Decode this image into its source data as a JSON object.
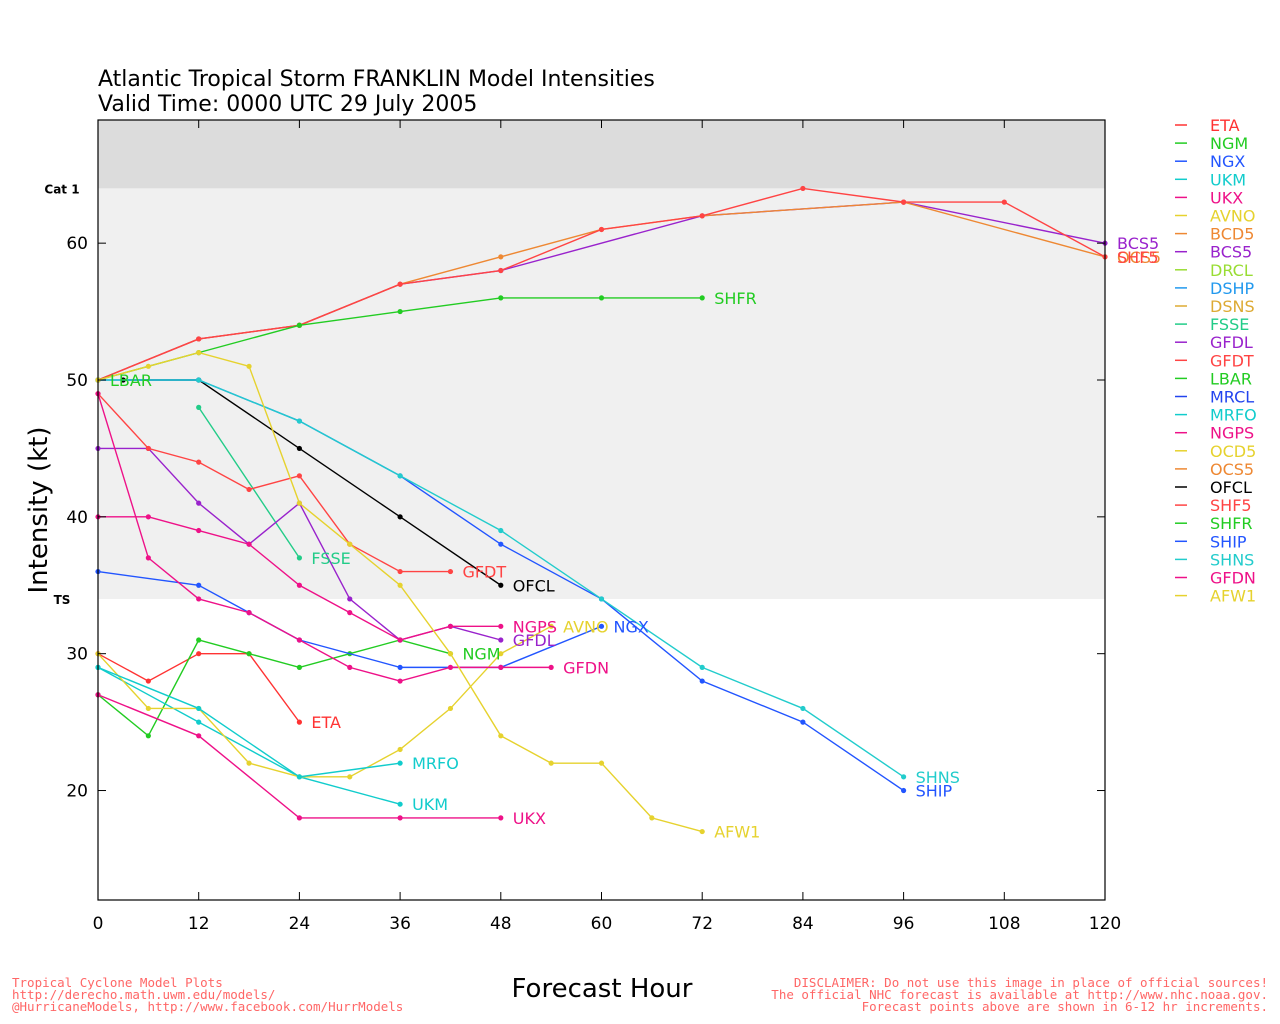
{
  "chart_data": {
    "type": "line",
    "title": "Atlantic Tropical Storm FRANKLIN Model Intensities",
    "subtitle": "Valid Time: 0000 UTC 29 July 2005",
    "xlabel": "Forecast Hour",
    "ylabel": "Intensity (kt)",
    "xlim": [
      0,
      120
    ],
    "ylim": [
      12,
      69
    ],
    "xticks": [
      0,
      12,
      24,
      36,
      48,
      60,
      72,
      84,
      96,
      108,
      120
    ],
    "yticks": [
      20,
      30,
      40,
      50,
      60
    ],
    "bands": [
      {
        "label": "Cat 1",
        "from": 64,
        "to": 69,
        "color": "#dcdcdc"
      },
      {
        "label": "TS",
        "from": 34,
        "to": 64,
        "color": "#f0f0f0"
      }
    ],
    "series": [
      {
        "name": "ETA",
        "color": "#ff3333",
        "points": [
          [
            0,
            30
          ],
          [
            6,
            28
          ],
          [
            12,
            30
          ],
          [
            18,
            30
          ],
          [
            24,
            25
          ]
        ],
        "label": "ETA"
      },
      {
        "name": "NGM",
        "color": "#22cc22",
        "points": [
          [
            0,
            27
          ],
          [
            6,
            24
          ],
          [
            12,
            31
          ],
          [
            18,
            30
          ],
          [
            24,
            29
          ],
          [
            30,
            30
          ],
          [
            36,
            31
          ],
          [
            42,
            30
          ]
        ],
        "label": "NGM"
      },
      {
        "name": "NGX",
        "color": "#2255ff",
        "points": [
          [
            0,
            36
          ],
          [
            12,
            35
          ],
          [
            18,
            33
          ],
          [
            24,
            31
          ],
          [
            36,
            29
          ],
          [
            48,
            29
          ],
          [
            60,
            32
          ]
        ],
        "label": "NGX"
      },
      {
        "name": "UKM",
        "color": "#11cccc",
        "points": [
          [
            0,
            29
          ],
          [
            12,
            25
          ],
          [
            24,
            21
          ],
          [
            36,
            19
          ]
        ],
        "label": "UKM"
      },
      {
        "name": "UKX",
        "color": "#ee1188",
        "points": [
          [
            0,
            27
          ],
          [
            12,
            24
          ],
          [
            24,
            18
          ],
          [
            36,
            18
          ],
          [
            48,
            18
          ]
        ],
        "label": "UKX"
      },
      {
        "name": "AVNO",
        "color": "#e6d22e",
        "points": [
          [
            0,
            30
          ],
          [
            6,
            26
          ],
          [
            12,
            26
          ],
          [
            18,
            22
          ],
          [
            24,
            21
          ],
          [
            30,
            21
          ],
          [
            36,
            23
          ],
          [
            42,
            26
          ],
          [
            48,
            30
          ],
          [
            54,
            32
          ]
        ],
        "label": "AVNO"
      },
      {
        "name": "BCD5",
        "color": "#ee8833",
        "points": [],
        "label": ""
      },
      {
        "name": "BCS5",
        "color": "#9922cc",
        "points": [
          [
            0,
            50
          ],
          [
            12,
            53
          ],
          [
            24,
            54
          ],
          [
            36,
            57
          ],
          [
            48,
            58
          ],
          [
            72,
            62
          ],
          [
            96,
            63
          ],
          [
            120,
            60
          ]
        ],
        "label": "BCS5"
      },
      {
        "name": "DRCL",
        "color": "#99dd33",
        "points": [],
        "label": ""
      },
      {
        "name": "DSHP",
        "color": "#2299ee",
        "points": [],
        "label": ""
      },
      {
        "name": "DSNS",
        "color": "#ddaa33",
        "points": [],
        "label": ""
      },
      {
        "name": "FSSE",
        "color": "#22cc88",
        "points": [
          [
            12,
            48
          ],
          [
            24,
            37
          ]
        ],
        "label": "FSSE"
      },
      {
        "name": "GFDL",
        "color": "#9922cc",
        "points": [
          [
            0,
            45
          ],
          [
            6,
            45
          ],
          [
            12,
            41
          ],
          [
            18,
            38
          ],
          [
            24,
            41
          ],
          [
            30,
            34
          ],
          [
            36,
            31
          ],
          [
            42,
            32
          ],
          [
            48,
            31
          ]
        ],
        "label": "GFDL"
      },
      {
        "name": "GFDT",
        "color": "#ff4444",
        "points": [
          [
            0,
            49
          ],
          [
            6,
            45
          ],
          [
            12,
            44
          ],
          [
            18,
            42
          ],
          [
            24,
            43
          ],
          [
            30,
            38
          ],
          [
            36,
            36
          ],
          [
            42,
            36
          ]
        ],
        "label": "GFDT"
      },
      {
        "name": "LBAR",
        "color": "#22cc22",
        "points": [
          [
            0,
            50
          ]
        ],
        "label": "LBAR"
      },
      {
        "name": "MRCL",
        "color": "#2244ee",
        "points": [],
        "label": ""
      },
      {
        "name": "MRFO",
        "color": "#11cccc",
        "points": [
          [
            0,
            29
          ],
          [
            12,
            26
          ],
          [
            24,
            21
          ],
          [
            36,
            22
          ]
        ],
        "label": "MRFO"
      },
      {
        "name": "NGPS",
        "color": "#ee1188",
        "points": [
          [
            0,
            40
          ],
          [
            6,
            40
          ],
          [
            12,
            39
          ],
          [
            18,
            38
          ],
          [
            24,
            35
          ],
          [
            30,
            33
          ],
          [
            36,
            31
          ],
          [
            42,
            32
          ],
          [
            48,
            32
          ]
        ],
        "label": "NGPS"
      },
      {
        "name": "OCD5",
        "color": "#e6d22e",
        "points": [],
        "label": ""
      },
      {
        "name": "OCS5",
        "color": "#ee8833",
        "points": [
          [
            0,
            50
          ],
          [
            12,
            53
          ],
          [
            24,
            54
          ],
          [
            36,
            57
          ],
          [
            48,
            59
          ],
          [
            60,
            61
          ],
          [
            72,
            62
          ],
          [
            96,
            63
          ],
          [
            120,
            59
          ]
        ],
        "label": "OCS5"
      },
      {
        "name": "OFCL",
        "color": "#000000",
        "points": [
          [
            3,
            50
          ],
          [
            12,
            50
          ],
          [
            24,
            45
          ],
          [
            36,
            40
          ],
          [
            48,
            35
          ]
        ],
        "label": "OFCL"
      },
      {
        "name": "SHF5",
        "color": "#ff4444",
        "points": [
          [
            0,
            50
          ],
          [
            12,
            53
          ],
          [
            24,
            54
          ],
          [
            36,
            57
          ],
          [
            48,
            58
          ],
          [
            60,
            61
          ],
          [
            72,
            62
          ],
          [
            84,
            64
          ],
          [
            96,
            63
          ],
          [
            108,
            63
          ],
          [
            120,
            59
          ]
        ],
        "label": "SHF5"
      },
      {
        "name": "SHFR",
        "color": "#22cc22",
        "points": [
          [
            0,
            50
          ],
          [
            12,
            52
          ],
          [
            24,
            54
          ],
          [
            36,
            55
          ],
          [
            48,
            56
          ],
          [
            60,
            56
          ],
          [
            72,
            56
          ]
        ],
        "label": "SHFR"
      },
      {
        "name": "SHIP",
        "color": "#2255ff",
        "points": [
          [
            0,
            50
          ],
          [
            12,
            50
          ],
          [
            24,
            47
          ],
          [
            36,
            43
          ],
          [
            48,
            38
          ],
          [
            60,
            34
          ],
          [
            72,
            28
          ],
          [
            84,
            25
          ],
          [
            96,
            20
          ]
        ],
        "label": "SHIP"
      },
      {
        "name": "SHNS",
        "color": "#22cccc",
        "points": [
          [
            0,
            50
          ],
          [
            12,
            50
          ],
          [
            24,
            47
          ],
          [
            36,
            43
          ],
          [
            48,
            39
          ],
          [
            60,
            34
          ],
          [
            72,
            29
          ],
          [
            84,
            26
          ],
          [
            96,
            21
          ]
        ],
        "label": "SHNS"
      },
      {
        "name": "GFDN",
        "color": "#ee1188",
        "points": [
          [
            0,
            49
          ],
          [
            6,
            37
          ],
          [
            12,
            34
          ],
          [
            18,
            33
          ],
          [
            24,
            31
          ],
          [
            30,
            29
          ],
          [
            36,
            28
          ],
          [
            42,
            29
          ],
          [
            48,
            29
          ],
          [
            54,
            29
          ]
        ],
        "label": "GFDN"
      },
      {
        "name": "AFW1",
        "color": "#e6d22e",
        "points": [
          [
            0,
            50
          ],
          [
            6,
            51
          ],
          [
            12,
            52
          ],
          [
            18,
            51
          ],
          [
            24,
            41
          ],
          [
            30,
            38
          ],
          [
            36,
            35
          ],
          [
            42,
            30
          ],
          [
            48,
            24
          ],
          [
            54,
            22
          ],
          [
            60,
            22
          ],
          [
            66,
            18
          ],
          [
            72,
            17
          ]
        ],
        "label": "AFW1"
      }
    ]
  },
  "footer": {
    "left": [
      "Tropical Cyclone Model Plots",
      "http://derecho.math.uwm.edu/models/",
      "@HurricaneModels, http://www.facebook.com/HurrModels"
    ],
    "right": [
      "DISCLAIMER: Do not use this image in place of official sources!",
      "The official NHC forecast is available at http://www.nhc.noaa.gov.",
      "Forecast points above are shown in 6-12 hr increments."
    ]
  }
}
